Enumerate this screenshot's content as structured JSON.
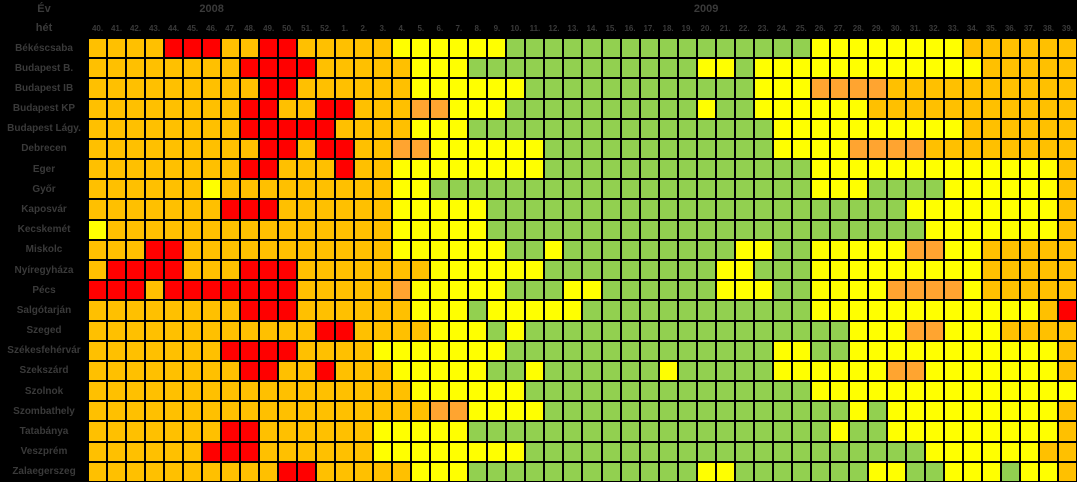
{
  "header": {
    "year_label": "Év",
    "week_label": "hét",
    "year_left": "2008",
    "year_right": "2009"
  },
  "chart_data": {
    "type": "heatmap",
    "xlabel": "hét",
    "x_weeks": [
      "40.",
      "41.",
      "42.",
      "43.",
      "44.",
      "45.",
      "46.",
      "47.",
      "48.",
      "49.",
      "50.",
      "51.",
      "52.",
      "1.",
      "2.",
      "3.",
      "4.",
      "5.",
      "6.",
      "7.",
      "8.",
      "9.",
      "10.",
      "11.",
      "12.",
      "13.",
      "14.",
      "15.",
      "16.",
      "17.",
      "18.",
      "19.",
      "20.",
      "21.",
      "22.",
      "23.",
      "24.",
      "25.",
      "26.",
      "27.",
      "28.",
      "29.",
      "30.",
      "31.",
      "32.",
      "33.",
      "34.",
      "35.",
      "36.",
      "37.",
      "38.",
      "39."
    ],
    "year_spans": [
      {
        "year": "2008",
        "weeks": 13
      },
      {
        "year": "2009",
        "weeks": 39
      }
    ],
    "stations": [
      "Békéscsaba",
      "Budapest B.",
      "Budapest IB",
      "Budapest KP",
      "Budapest Lágy.",
      "Debrecen",
      "Eger",
      "Győr",
      "Kaposvár",
      "Kecskemét",
      "Miskolc",
      "Nyíregyháza",
      "Pécs",
      "Salgótarján",
      "Szeged",
      "Székesfehérvár",
      "Szekszárd",
      "Szolnok",
      "Szombathely",
      "Tatabánya",
      "Veszprém",
      "Zalaegerszeg"
    ],
    "rows": [
      "OOOORRROORROOOOOYYYYYYGGGGGGGGGGGGGGGGYYYYYYYYOOOOOO",
      "OOOOOOOORRRROOOOOYYYGGGGGGGGGGGGYYGYYYYYYYYYYYYOOOOO",
      "OOOOOOOOORROOOOOOYYYYYYGGGGGGGGGGGGYYYDDDDOOOOOOOOOO",
      "OOOOOOOORROORROOODDYYYGGGGGGGGGGYGGYYYYYYOOOOOOOOOOO",
      "OOOOOOOORRRRROOOOYYYGGGGGGGGGGGGGGGGYYYYYYYYYYOOOOOO",
      "OOOOOOOOORRORROODDYYYYYYGGGGGGGGGGGGYYYYDDDDOOOOOOOO",
      "OOOOOOOORROOOROOYYYYYYYYGGGGGGGGGGGGGGYYYYYYYYYYYYYO",
      "OOOOOOYOOOOOOOOOYYGGGGGGGGGGGGGGGGGGGGYYYGGGGYYYYYYO",
      "OOOOOOORRROOOOOOYYYYYGGGGGGGGGGGGGGGGGGGGGGYYYYYYYYO",
      "YOOOOOOOOOOOOOOOYYYYYGGGGGGGGGGGGGGGGGGGGGGGYYYYYYYO",
      "OOORROOOOOOOOOOOYYYYYYGGYGGGGGGGGGYYGGYYYYYDDYYOOOOO",
      "ORRRROOORRROOOOOOOYYYYYYGGGGGGGGGYYGGGYYYYYYYYYOOOOO",
      "RRRORRRRRRROOOOODYYYYYGGGYYGGGGGGYYYGGYYYYDDDDYOOOOO",
      "OOOOOOOORRROOOOOOYYYGYYYYYGGGGGGGGGGGGYYYYYYYYYYYYOR",
      "OOOOOOOOOOOORROOOOYYYGYGGGGGGGGGGGGGGGGGYYYDDYYYOOOO",
      "OOOOOOORRRROOOOYYYYYYYGGGGGGGGGGGGGGYYGGYYYYYYYYYYYO",
      "OOOOOOOORROOROOOYYYYYGGYGGGGGGYGGGGGYYYYYYDDYYYYYYYO",
      "OOOOOOOOOOOOOOOOOYYYYYYGGGGGGGGGGGGGGGYYYYYYYYYYYYYY",
      "OOOOOOOOOOOOOOOOOODDYYYYGGGGGGGGGGGGGGGGYGYYYYYYYYYO",
      "OOOOOOORROOOOOOYYYYYGGGGGGGGGGGGGGGGGGGYGGYYYYYYYYYO",
      "OOOOOORRROOOOOOYYYYYYYYGGGGGGGGGGGGGGGGGGGGGYYYYYYOO",
      "OOOOOOOOOORROOOOOYYYGGGGGGGGGGGGYYGGGGGGGYYGGYYYGYYO"
    ],
    "colors": {
      "O": "#FFC000",
      "D": "#FFA430",
      "R": "#FF0000",
      "Y": "#FFFF00",
      "G": "#92D050"
    }
  }
}
